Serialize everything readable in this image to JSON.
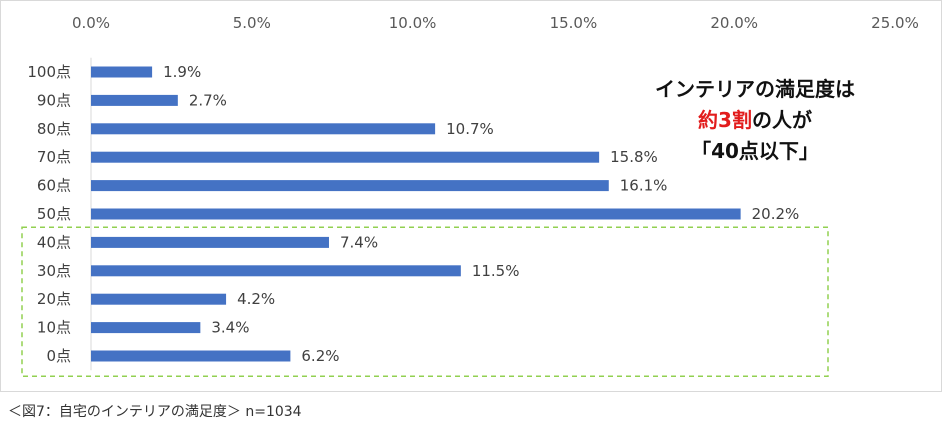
{
  "chart_data": {
    "type": "bar",
    "orientation": "horizontal",
    "categories": [
      "100点",
      "90点",
      "80点",
      "70点",
      "60点",
      "50点",
      "40点",
      "30点",
      "20点",
      "10点",
      "0点"
    ],
    "values": [
      1.9,
      2.7,
      10.7,
      15.8,
      16.1,
      20.2,
      7.4,
      11.5,
      4.2,
      3.4,
      6.2
    ],
    "data_labels": [
      "1.9%",
      "2.7%",
      "10.7%",
      "15.8%",
      "16.1%",
      "20.2%",
      "7.4%",
      "11.5%",
      "4.2%",
      "3.4%",
      "6.2%"
    ],
    "x_ticks": [
      "0.0%",
      "5.0%",
      "10.0%",
      "15.0%",
      "20.0%",
      "25.0%"
    ],
    "xlim": [
      0,
      25
    ],
    "grid": false,
    "bar_color": "#4472c4",
    "highlight_box_color": "#92d050",
    "highlight_categories": [
      "40点",
      "30点",
      "20点",
      "10点",
      "0点"
    ]
  },
  "callout": {
    "line1": "インテリアの満足度は",
    "line2_highlight": "約3割",
    "line2_rest": "の人が",
    "line3": "「40点以下」",
    "highlight_color": "#e21c1c"
  },
  "caption": "＜図7：自宅のインテリアの満足度＞ n=1034"
}
